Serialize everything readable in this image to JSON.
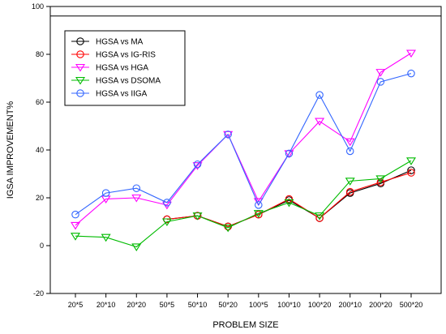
{
  "chart_data": {
    "type": "line",
    "title": "",
    "xlabel": "PROBLEM SIZE",
    "ylabel": "IGSA IMPROVEMENT%",
    "categories": [
      "20*5",
      "20*10",
      "20*20",
      "50*5",
      "50*10",
      "50*20",
      "100*5",
      "100*10",
      "100*20",
      "200*10",
      "200*20",
      "500*20"
    ],
    "ylim": [
      -20,
      100
    ],
    "yticks": [
      -20,
      0,
      20,
      40,
      60,
      80,
      100
    ],
    "reference_line": 96,
    "grid": false,
    "legend_position": "top-left",
    "series": [
      {
        "name": "HGSA vs MA",
        "color": "#000000",
        "marker": "circle",
        "values": [
          null,
          null,
          null,
          11,
          12.5,
          8,
          13,
          19,
          11.5,
          22,
          26,
          31.5
        ]
      },
      {
        "name": "HGSA vs IG-RIS",
        "color": "#ff0000",
        "marker": "circle",
        "values": [
          null,
          null,
          null,
          11,
          12.5,
          8,
          13,
          19.5,
          11.5,
          22.5,
          26.5,
          30.5
        ]
      },
      {
        "name": "HGSA vs HGA",
        "color": "#ff00ff",
        "marker": "triangle-down",
        "values": [
          8.5,
          19.5,
          20,
          17,
          33.5,
          46.5,
          18.5,
          38.5,
          52,
          43.5,
          72.5,
          80.5
        ]
      },
      {
        "name": "HGSA vs DSOMA",
        "color": "#00bb00",
        "marker": "triangle-down",
        "values": [
          4,
          3.5,
          -0.5,
          10,
          12.5,
          7.5,
          13.5,
          18,
          12.5,
          27,
          28,
          35.5
        ]
      },
      {
        "name": "HGSA vs IIGA",
        "color": "#3366ff",
        "marker": "circle",
        "values": [
          13,
          22,
          24,
          18,
          34,
          46.5,
          17,
          38.5,
          63,
          39.5,
          68.5,
          72
        ]
      }
    ]
  }
}
